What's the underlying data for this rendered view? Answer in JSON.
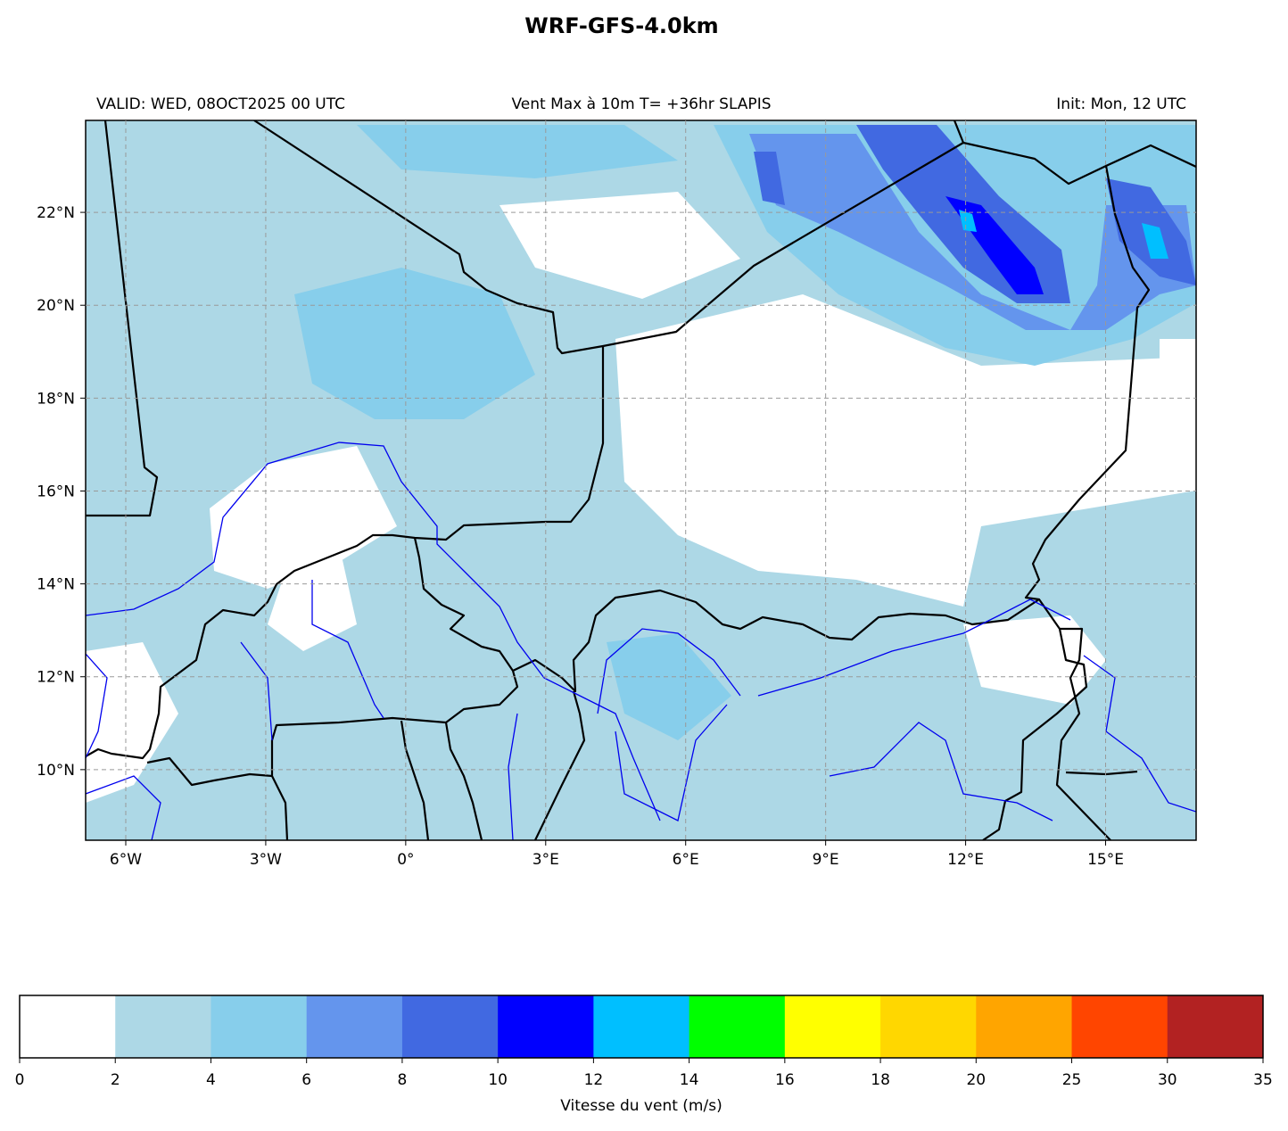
{
  "title": "WRF-GFS-4.0km",
  "subtitle_left": "VALID: WED, 08OCT2025 00 UTC",
  "subtitle_center": "Vent Max à 10m T= +36hr SLAPIS",
  "subtitle_right": "Init: Mon, 12 UTC",
  "map": {
    "xlim": [
      -6.86,
      16.94
    ],
    "ylim": [
      8.48,
      23.98
    ],
    "grid": true,
    "xticks": [
      {
        "value": -6,
        "label": "6°W"
      },
      {
        "value": -3,
        "label": "3°W"
      },
      {
        "value": 0,
        "label": "0°"
      },
      {
        "value": 3,
        "label": "3°E"
      },
      {
        "value": 6,
        "label": "6°E"
      },
      {
        "value": 9,
        "label": "9°E"
      },
      {
        "value": 12,
        "label": "12°E"
      },
      {
        "value": 15,
        "label": "15°E"
      }
    ],
    "yticks": [
      {
        "value": 10,
        "label": "10°N"
      },
      {
        "value": 12,
        "label": "12°N"
      },
      {
        "value": 14,
        "label": "14°N"
      },
      {
        "value": 16,
        "label": "16°N"
      },
      {
        "value": 18,
        "label": "18°N"
      },
      {
        "value": 20,
        "label": "20°N"
      },
      {
        "value": 22,
        "label": "22°N"
      }
    ]
  },
  "colorbar": {
    "label": "Vitesse du vent (m/s)",
    "bounds": [
      0,
      2,
      4,
      6,
      8,
      10,
      12,
      14,
      16,
      18,
      20,
      25,
      30,
      35
    ],
    "colors": [
      "#ffffff",
      "#add8e6",
      "#87ceeb",
      "#6495ed",
      "#4169e1",
      "#0000ff",
      "#00bfff",
      "#00ff00",
      "#ffff00",
      "#ffd700",
      "#ffa500",
      "#ff4500",
      "#b22222"
    ]
  }
}
